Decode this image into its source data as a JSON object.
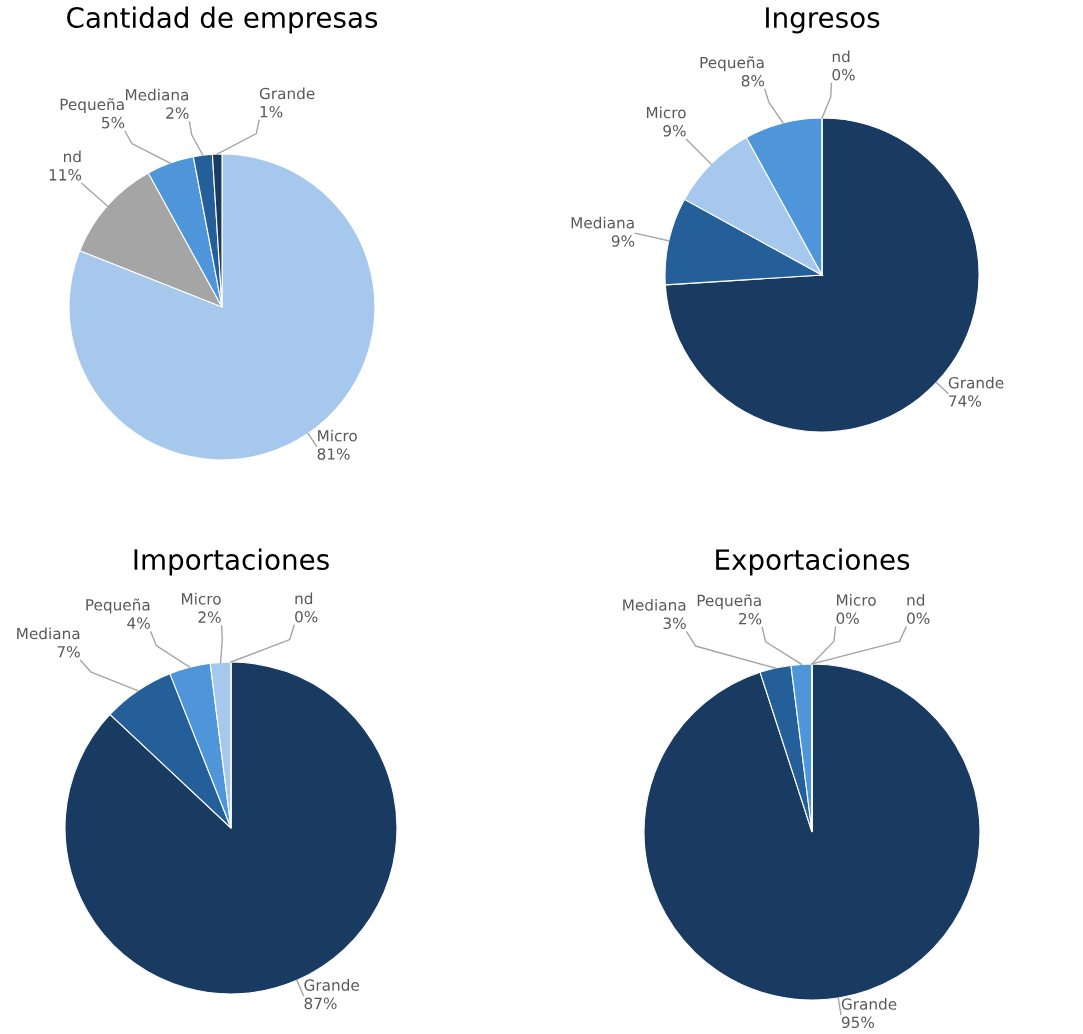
{
  "chart_data": [
    {
      "type": "pie",
      "title": "Cantidad de empresas",
      "categories": [
        "Micro",
        "nd",
        "Pequeña",
        "Mediana",
        "Grande"
      ],
      "values": [
        81,
        11,
        5,
        2,
        1
      ],
      "value_labels": [
        "81%",
        "11%",
        "5%",
        "2%",
        "1%"
      ],
      "colors": [
        "#a6c8ec",
        "#a5a5a5",
        "#4e95d9",
        "#245f9a",
        "#193b61"
      ],
      "legend": false
    },
    {
      "type": "pie",
      "title": "Ingresos",
      "categories": [
        "Grande",
        "Mediana",
        "Micro",
        "Pequeña",
        "nd"
      ],
      "values": [
        74,
        9,
        9,
        8,
        0
      ],
      "value_labels": [
        "74%",
        "9%",
        "9%",
        "8%",
        "0%"
      ],
      "colors": [
        "#193b61",
        "#245f9a",
        "#a6c8ec",
        "#4e95d9",
        "#a5a5a5"
      ],
      "legend": false
    },
    {
      "type": "pie",
      "title": "Importaciones",
      "categories": [
        "Grande",
        "Mediana",
        "Pequeña",
        "Micro",
        "nd"
      ],
      "values": [
        87,
        7,
        4,
        2,
        0
      ],
      "value_labels": [
        "87%",
        "7%",
        "4%",
        "2%",
        "0%"
      ],
      "colors": [
        "#193b61",
        "#245f9a",
        "#4e95d9",
        "#a6c8ec",
        "#e040a0"
      ],
      "legend": false
    },
    {
      "type": "pie",
      "title": "Exportaciones",
      "categories": [
        "Grande",
        "Mediana",
        "Pequeña",
        "Micro",
        "nd"
      ],
      "values": [
        95,
        3,
        2,
        0,
        0
      ],
      "value_labels": [
        "95%",
        "3%",
        "2%",
        "0%",
        "0%"
      ],
      "colors": [
        "#193b61",
        "#245f9a",
        "#4e95d9",
        "#a6c8ec",
        "#e040a0"
      ],
      "legend": false
    }
  ]
}
